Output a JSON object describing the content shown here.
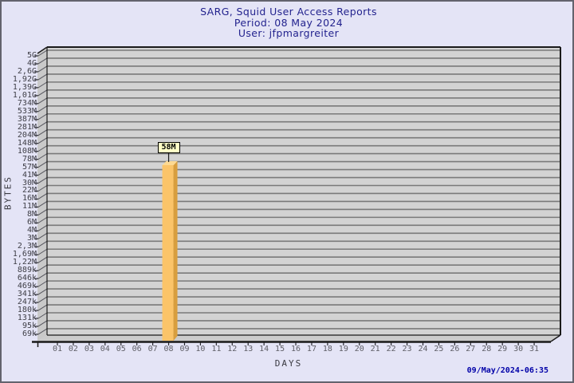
{
  "title": {
    "line1": "SARG, Squid User Access Reports",
    "line2": "Period: 08 May 2024",
    "line3": "User: jfpmargreiter",
    "color": "#23238e"
  },
  "chart_data": {
    "type": "bar",
    "title": "SARG, Squid User Access Reports",
    "subtitle": "Period: 08 May 2024",
    "user": "jfpmargreiter",
    "xlabel": "DAYS",
    "ylabel": "BYTES",
    "y_scale": "log",
    "ylim": [
      "69k",
      "5G"
    ],
    "grid": true,
    "y_ticks": [
      "5G",
      "4G",
      "2,6G",
      "1,92G",
      "1,39G",
      "1,01G",
      "734M",
      "533M",
      "387M",
      "281M",
      "204M",
      "148M",
      "108M",
      "78M",
      "57M",
      "41M",
      "30M",
      "22M",
      "16M",
      "11M",
      "8M",
      "6M",
      "4M",
      "3M",
      "2,3M",
      "1,69M",
      "1,22M",
      "889k",
      "646k",
      "469k",
      "341k",
      "247k",
      "180k",
      "131k",
      "95k",
      "69k"
    ],
    "x_ticks": [
      "01",
      "02",
      "03",
      "04",
      "05",
      "06",
      "07",
      "08",
      "09",
      "10",
      "11",
      "12",
      "13",
      "14",
      "15",
      "16",
      "17",
      "18",
      "19",
      "20",
      "21",
      "22",
      "23",
      "24",
      "25",
      "26",
      "27",
      "28",
      "29",
      "30",
      "31"
    ],
    "bars": [
      {
        "x": "08",
        "label": "58M",
        "value_bytes": 58000000
      }
    ],
    "colors": {
      "bar_front": "#fbc469",
      "bar_side": "#d89e3e",
      "bar_top": "#fdd992",
      "wall_bg": "#d3d3d3",
      "side_wall_bg": "#c9c9c9",
      "floor_bg": "#cbcbcb",
      "grid_line": "#7a7a7a",
      "axis_line": "#1a1a1a",
      "value_box_bg": "#ffffc6",
      "page_bg": "#e4e4f6",
      "title_text": "#23238e",
      "timestamp_text": "#0000a8"
    }
  },
  "footer": {
    "timestamp": "09/May/2024-06:35"
  }
}
